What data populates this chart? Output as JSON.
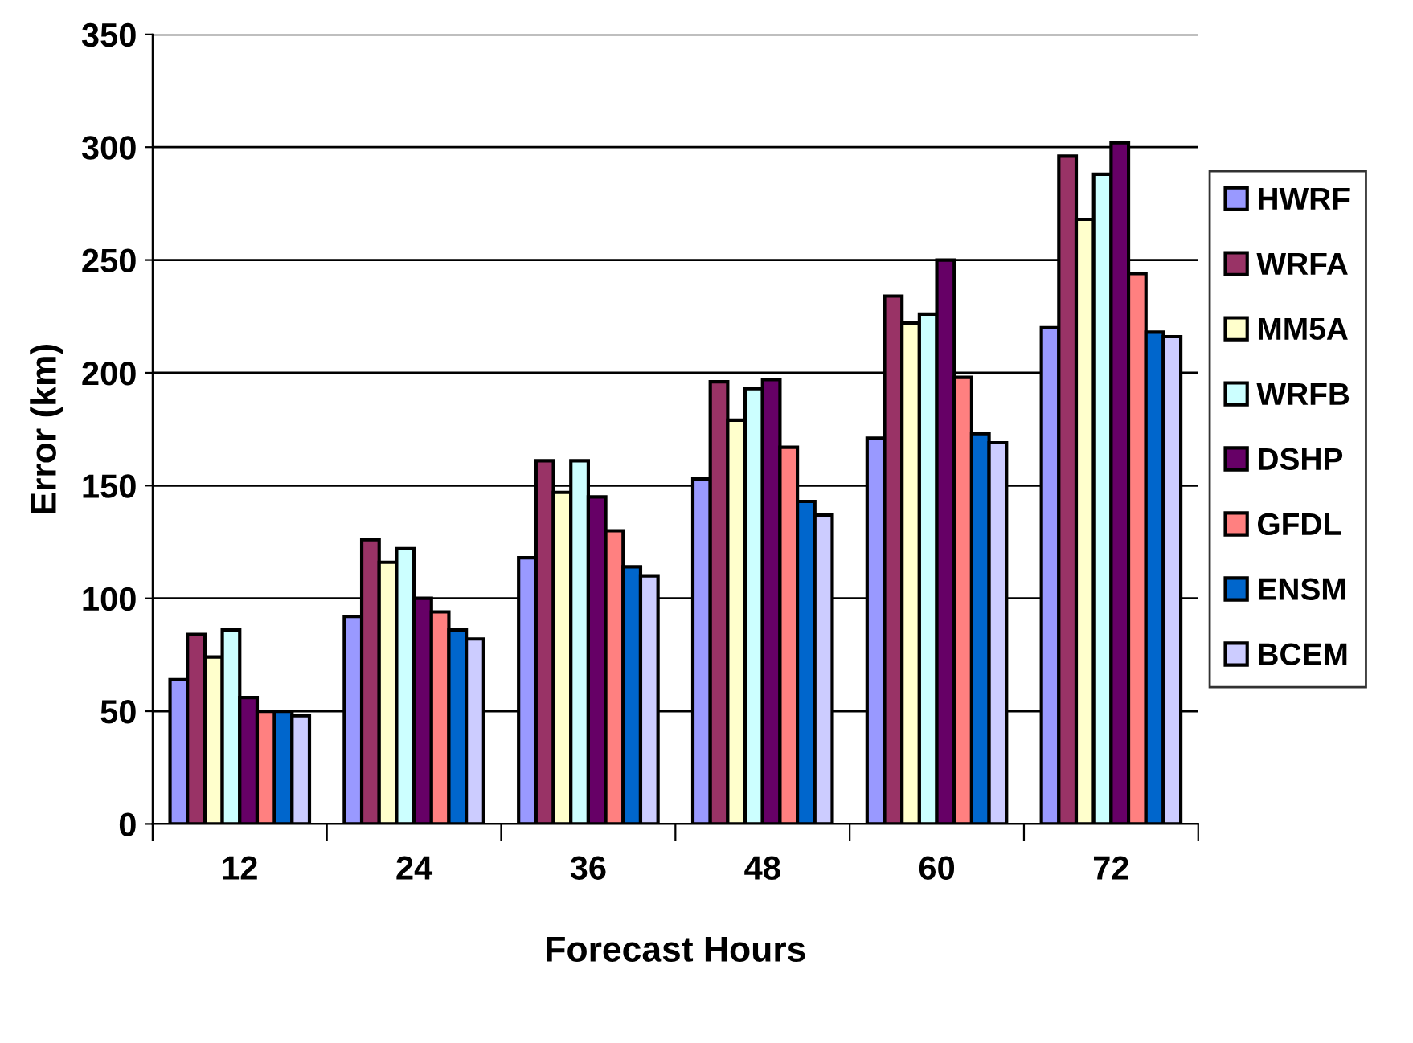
{
  "chart_data": {
    "type": "bar",
    "xlabel": "Forecast Hours",
    "ylabel": "Error (km)",
    "categories": [
      "12",
      "24",
      "36",
      "48",
      "60",
      "72"
    ],
    "series": [
      {
        "name": "HWRF",
        "color": "#9999ff",
        "values": [
          64,
          92,
          118,
          153,
          171,
          220
        ]
      },
      {
        "name": "WRFA",
        "color": "#993366",
        "values": [
          84,
          126,
          161,
          196,
          234,
          296
        ]
      },
      {
        "name": "MM5A",
        "color": "#ffffcc",
        "values": [
          74,
          116,
          147,
          179,
          222,
          268
        ]
      },
      {
        "name": "WRFB",
        "color": "#ccffff",
        "values": [
          86,
          122,
          161,
          193,
          226,
          288
        ]
      },
      {
        "name": "DSHP",
        "color": "#660066",
        "values": [
          56,
          100,
          145,
          197,
          250,
          302
        ]
      },
      {
        "name": "GFDL",
        "color": "#ff8080",
        "values": [
          50,
          94,
          130,
          167,
          198,
          244
        ]
      },
      {
        "name": "ENSM",
        "color": "#0066cc",
        "values": [
          50,
          86,
          114,
          143,
          173,
          218
        ]
      },
      {
        "name": "BCEM",
        "color": "#ccccff",
        "values": [
          48,
          82,
          110,
          137,
          169,
          216
        ]
      }
    ],
    "ylim": [
      0,
      350
    ],
    "yticks": [
      0,
      50,
      100,
      150,
      200,
      250,
      300,
      350
    ],
    "grid": "y",
    "legend": "right"
  }
}
